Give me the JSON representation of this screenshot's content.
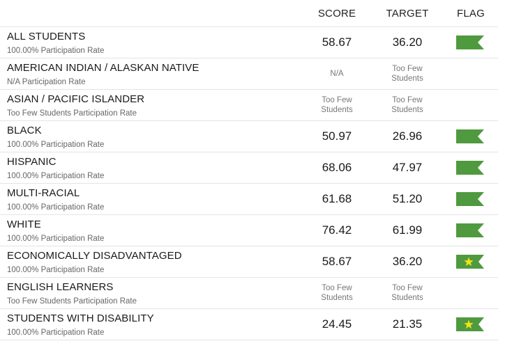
{
  "header": {
    "score": "SCORE",
    "target": "TARGET",
    "flag": "FLAG"
  },
  "rows": [
    {
      "group": "ALL STUDENTS",
      "participation": "100.00% Participation Rate",
      "score": "58.67",
      "target": "36.20",
      "flag": "green-pennant-icon"
    },
    {
      "group": "AMERICAN INDIAN / ALASKAN NATIVE",
      "participation": "N/A Participation Rate",
      "score": "N/A",
      "target": "Too Few Students",
      "flag": ""
    },
    {
      "group": "ASIAN / PACIFIC ISLANDER",
      "participation": "Too Few Students Participation Rate",
      "score": "Too Few Students",
      "target": "Too Few Students",
      "flag": ""
    },
    {
      "group": "BLACK",
      "participation": "100.00% Participation Rate",
      "score": "50.97",
      "target": "26.96",
      "flag": "green-pennant-icon"
    },
    {
      "group": "HISPANIC",
      "participation": "100.00% Participation Rate",
      "score": "68.06",
      "target": "47.97",
      "flag": "green-pennant-icon"
    },
    {
      "group": "MULTI-RACIAL",
      "participation": "100.00% Participation Rate",
      "score": "61.68",
      "target": "51.20",
      "flag": "green-pennant-icon"
    },
    {
      "group": "WHITE",
      "participation": "100.00% Participation Rate",
      "score": "76.42",
      "target": "61.99",
      "flag": "green-pennant-icon"
    },
    {
      "group": "ECONOMICALLY DISADVANTAGED",
      "participation": "100.00% Participation Rate",
      "score": "58.67",
      "target": "36.20",
      "flag": "green-star-flag-icon"
    },
    {
      "group": "ENGLISH LEARNERS",
      "participation": "Too Few Students Participation Rate",
      "score": "Too Few Students",
      "target": "Too Few Students",
      "flag": ""
    },
    {
      "group": "STUDENTS WITH DISABILITY",
      "participation": "100.00% Participation Rate",
      "score": "24.45",
      "target": "21.35",
      "flag": "green-star-flag-icon"
    }
  ],
  "colors": {
    "flag_green": "#4f9a3f",
    "star_yellow": "#f4e21a"
  }
}
